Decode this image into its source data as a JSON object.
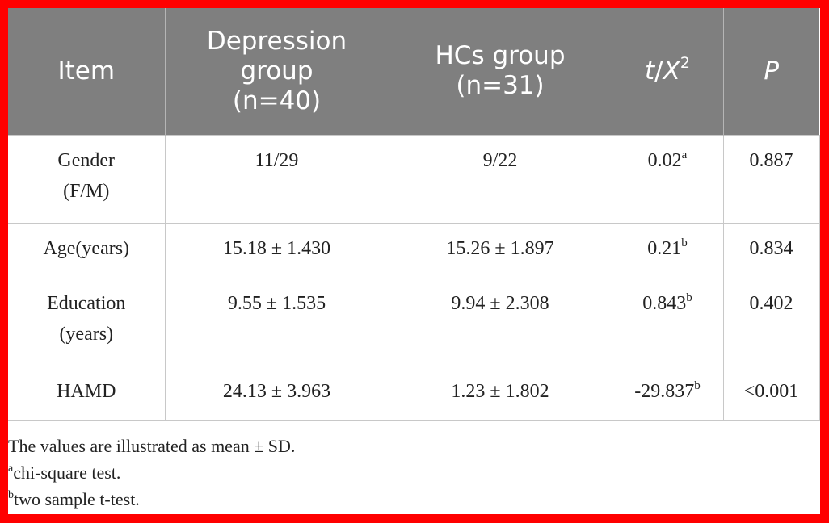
{
  "table": {
    "headers": {
      "item": "Item",
      "depression_line1": "Depression",
      "depression_line2": "group",
      "depression_line3": "(n=40)",
      "hcs_line1": "HCs group",
      "hcs_line2": "(n=31)",
      "stat_t": "t",
      "stat_sep": "/",
      "stat_x": "X",
      "stat_exp": "2",
      "p": "P"
    },
    "rows": [
      {
        "item_line1": "Gender",
        "item_line2": "(F/M)",
        "depression": "11/29",
        "hcs": "9/22",
        "stat": "0.02",
        "stat_mark": "a",
        "p": "0.887"
      },
      {
        "item_line1": "Age(years)",
        "item_line2": "",
        "depression": "15.18 ± 1.430",
        "hcs": "15.26 ± 1.897",
        "stat": "0.21",
        "stat_mark": "b",
        "p": "0.834"
      },
      {
        "item_line1": "Education",
        "item_line2": "(years)",
        "depression": "9.55 ± 1.535",
        "hcs": "9.94 ± 2.308",
        "stat": "0.843",
        "stat_mark": "b",
        "p": "0.402"
      },
      {
        "item_line1": "HAMD",
        "item_line2": "",
        "depression": "24.13 ± 3.963",
        "hcs": "1.23 ± 1.802",
        "stat": "-29.837",
        "stat_mark": "b",
        "p": "<0.001"
      }
    ]
  },
  "notes": {
    "line1": "The values are illustrated as mean ± SD.",
    "line2_mark": "a",
    "line2_text": "chi-square test.",
    "line3_mark": "b",
    "line3_text": "two sample t-test."
  },
  "colors": {
    "border_frame": "#ff0000",
    "header_bg": "#7f7f7f",
    "header_text": "#ffffff",
    "grid": "#c8c8c8"
  }
}
